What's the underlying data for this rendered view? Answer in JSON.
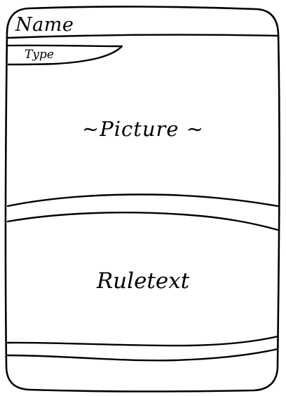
{
  "card": {
    "name": "Name",
    "type": "Type",
    "picture": "~Picture ~",
    "ruletext": "Ruletext"
  },
  "colors": {
    "ink": "#000000",
    "paper": "#ffffff"
  }
}
